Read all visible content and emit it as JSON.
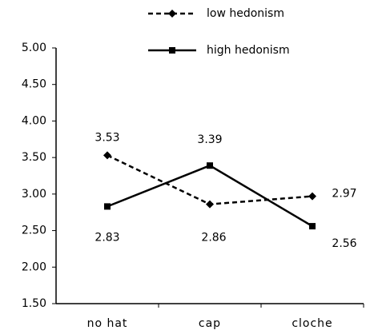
{
  "chart_data": {
    "type": "line",
    "categories": [
      "no hat",
      "cap",
      "cloche"
    ],
    "series": [
      {
        "name": "low hedonism",
        "color": "#000000",
        "line_style": "dashed",
        "marker": "diamond",
        "values": [
          3.53,
          2.86,
          2.97
        ]
      },
      {
        "name": "high hedonism",
        "color": "#000000",
        "line_style": "solid",
        "marker": "square",
        "values": [
          2.83,
          3.39,
          2.56
        ]
      }
    ],
    "ylim": [
      1.5,
      5
    ],
    "yticks": [
      {
        "value": 1.5,
        "label": "1.50"
      },
      {
        "value": 2,
        "label": "2.00"
      },
      {
        "value": 2.5,
        "label": "2.50"
      },
      {
        "value": 3,
        "label": "3.00"
      },
      {
        "value": 3.5,
        "label": "3.50"
      },
      {
        "value": 4,
        "label": "4.00"
      },
      {
        "value": 4.5,
        "label": "4.50"
      },
      {
        "value": 5,
        "label": "5.00"
      }
    ],
    "grid": false,
    "legend": "top"
  }
}
